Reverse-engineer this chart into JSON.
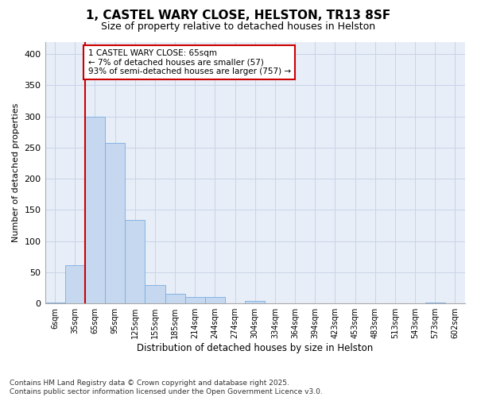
{
  "title_line1": "1, CASTEL WARY CLOSE, HELSTON, TR13 8SF",
  "title_line2": "Size of property relative to detached houses in Helston",
  "xlabel": "Distribution of detached houses by size in Helston",
  "ylabel": "Number of detached properties",
  "categories": [
    "6sqm",
    "35sqm",
    "65sqm",
    "95sqm",
    "125sqm",
    "155sqm",
    "185sqm",
    "214sqm",
    "244sqm",
    "274sqm",
    "304sqm",
    "334sqm",
    "364sqm",
    "394sqm",
    "423sqm",
    "453sqm",
    "483sqm",
    "513sqm",
    "543sqm",
    "573sqm",
    "602sqm"
  ],
  "values": [
    2,
    62,
    300,
    258,
    134,
    30,
    15,
    10,
    10,
    0,
    4,
    0,
    0,
    0,
    0,
    0,
    0,
    0,
    0,
    1,
    0
  ],
  "bar_color": "#c5d8f0",
  "bar_edge_color": "#7aade0",
  "redline_index": 2,
  "annotation_text": "1 CASTEL WARY CLOSE: 65sqm\n← 7% of detached houses are smaller (57)\n93% of semi-detached houses are larger (757) →",
  "annotation_box_color": "#ffffff",
  "annotation_box_edge": "#cc0000",
  "redline_color": "#cc0000",
  "grid_color": "#c8d4e8",
  "background_color": "#e8eef8",
  "footer_text": "Contains HM Land Registry data © Crown copyright and database right 2025.\nContains public sector information licensed under the Open Government Licence v3.0.",
  "ylim": [
    0,
    420
  ],
  "yticks": [
    0,
    50,
    100,
    150,
    200,
    250,
    300,
    350,
    400
  ]
}
